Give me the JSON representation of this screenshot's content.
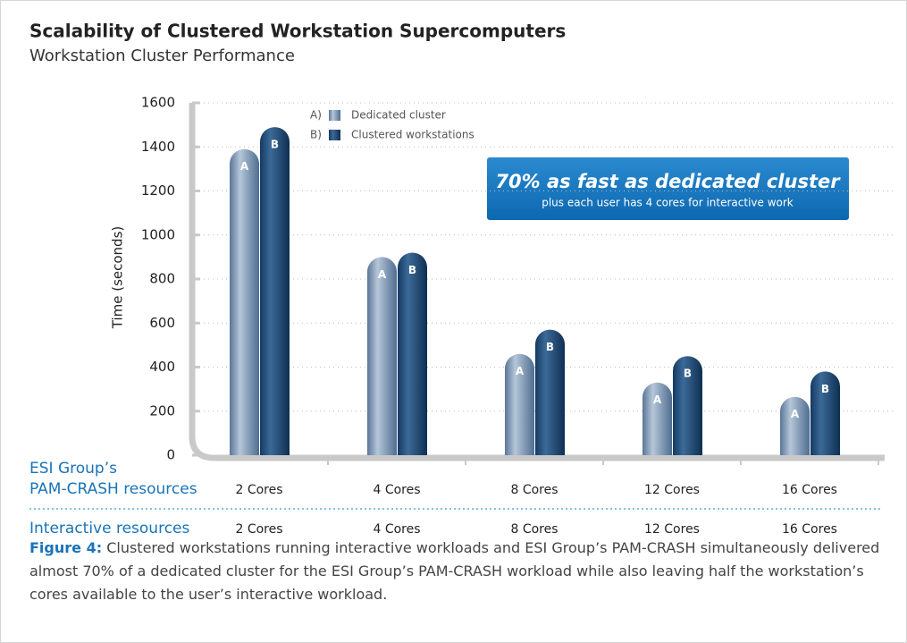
{
  "chart_data": {
    "type": "bar",
    "title": "Scalability of Clustered Workstation Supercomputers",
    "subtitle": "Workstation Cluster Performance",
    "y_label": "Time (seconds)",
    "categories": [
      "2 Cores",
      "4 Cores",
      "8 Cores",
      "12 Cores",
      "16 Cores"
    ],
    "category_row_label": [
      "ESI Group’s",
      "PAM-CRASH resources"
    ],
    "interactive_row_label": "Interactive resources",
    "interactive_categories": [
      "2 Cores",
      "4 Cores",
      "8 Cores",
      "12 Cores",
      "16 Cores"
    ],
    "series": [
      {
        "name": "Dedicated cluster",
        "key": "A)",
        "bar_label": "A",
        "color": "#6f8cad",
        "values": [
          1390,
          900,
          460,
          330,
          265
        ]
      },
      {
        "name": "Clustered workstations",
        "key": "B)",
        "bar_label": "B",
        "color": "#1c4470",
        "values": [
          1490,
          920,
          570,
          450,
          380
        ]
      }
    ],
    "ylim": [
      0,
      1600
    ],
    "yticks": [
      0,
      200,
      400,
      600,
      800,
      1000,
      1200,
      1400,
      1600
    ],
    "grid": true,
    "callout": {
      "title": "70% as fast as dedicated cluster",
      "text": "plus each user has 4 cores for interactive work"
    },
    "caption_label": "Figure 4:",
    "caption_text": "Clustered workstations running interactive workloads and ESI Group’s PAM-CRASH simultaneously delivered almost 70% of a dedicated cluster for the ESI Group’s PAM-CRASH workload while also leaving half the workstation’s cores available to the user’s interactive workload."
  }
}
